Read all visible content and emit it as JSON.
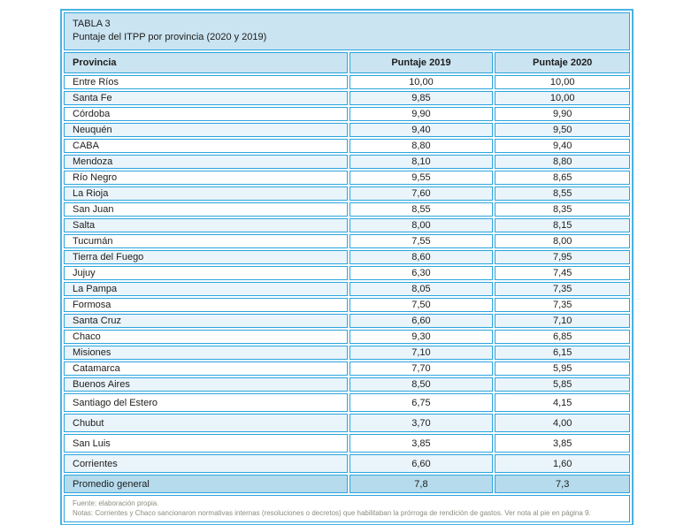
{
  "table": {
    "title_line1": "TABLA 3",
    "title_line2": "Puntaje del ITPP por provincia (2020 y 2019)",
    "columns": [
      "Provincia",
      "Puntaje 2019",
      "Puntaje 2020"
    ],
    "rows": [
      [
        "Entre Ríos",
        "10,00",
        "10,00"
      ],
      [
        "Santa Fe",
        "9,85",
        "10,00"
      ],
      [
        "Córdoba",
        "9,90",
        "9,90"
      ],
      [
        "Neuquén",
        "9,40",
        "9,50"
      ],
      [
        "CABA",
        "8,80",
        "9,40"
      ],
      [
        "Mendoza",
        "8,10",
        "8,80"
      ],
      [
        "Río Negro",
        "9,55",
        "8,65"
      ],
      [
        "La Rioja",
        "7,60",
        "8,55"
      ],
      [
        "San Juan",
        "8,55",
        "8,35"
      ],
      [
        "Salta",
        "8,00",
        "8,15"
      ],
      [
        "Tucumán",
        "7,55",
        "8,00"
      ],
      [
        "Tierra del Fuego",
        "8,60",
        "7,95"
      ],
      [
        "Jujuy",
        "6,30",
        "7,45"
      ],
      [
        "La Pampa",
        "8,05",
        "7,35"
      ],
      [
        "Formosa",
        "7,50",
        "7,35"
      ],
      [
        "Santa Cruz",
        "6,60",
        "7,10"
      ],
      [
        "Chaco",
        "9,30",
        "6,85"
      ],
      [
        "Misiones",
        "7,10",
        "6,15"
      ],
      [
        "Catamarca",
        "7,70",
        "5,95"
      ],
      [
        "Buenos Aires",
        "8,50",
        "5,85"
      ],
      [
        "Santiago del Estero",
        "6,75",
        "4,15"
      ],
      [
        "Chubut",
        "3,70",
        "4,00"
      ],
      [
        "San Luis",
        "3,85",
        "3,85"
      ],
      [
        "Corrientes",
        "6,60",
        "1,60"
      ]
    ],
    "summary_row": [
      "Promedio general",
      "7,8",
      "7,3"
    ],
    "footer": {
      "fuente": "Fuente: elaboración propia.",
      "notas": "Notas: Corrientes y Chaco sancionaron normativas internas (resoluciones o decretos) que habilitaban la prórroga de rendición de gastos. Ver nota al pie en página 9."
    },
    "colors": {
      "border_blue": "#2aa5dd",
      "outer_border_blue": "#49b3e3",
      "title_header_bg": "#cbe4f2",
      "alt_row_bg": "#eaf4fb",
      "summary_row_bg": "#b5dbed",
      "text": "#1d1d1b",
      "footnote_text": "#8c8c80"
    }
  }
}
